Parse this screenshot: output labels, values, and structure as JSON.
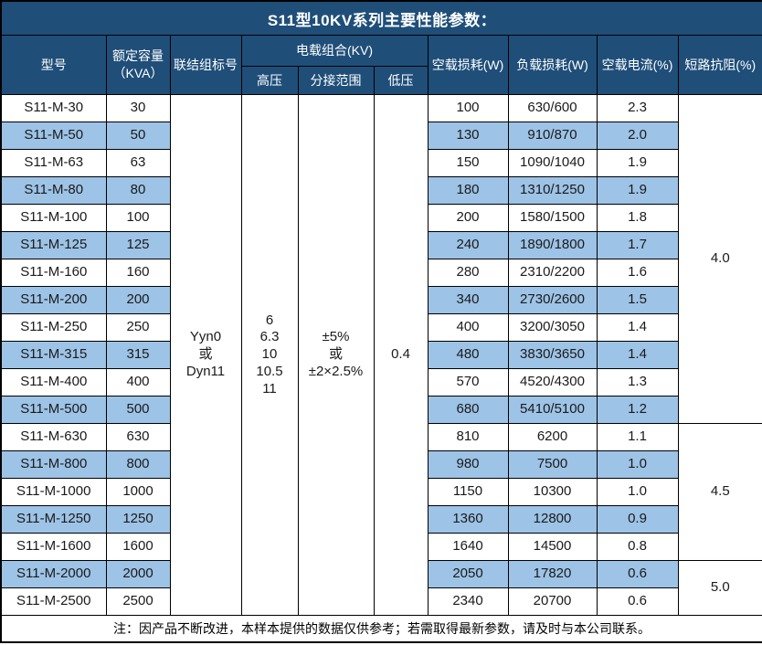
{
  "title": "S11型10KV系列主要性能参数：",
  "header": {
    "model": "型号",
    "capacity_line1": "额定容量",
    "capacity_line2": "（KVA）",
    "connection": "联结组标号",
    "voltage_group": "电载组合(KV)",
    "hv": "高压",
    "tap_range": "分接范围",
    "lv": "低压",
    "no_load_loss": "空载损耗(W)",
    "load_loss": "负载损耗(W)",
    "no_load_current": "空载电流(%)",
    "impedance": "短路抗阻(%)"
  },
  "merged": {
    "connection_lines": [
      "Yyn0",
      "或",
      "Dyn11"
    ],
    "hv_lines": [
      "6",
      "6.3",
      "10",
      "10.5",
      "11"
    ],
    "tap_lines": [
      "±5%",
      "或",
      "±2×2.5%"
    ],
    "lv": "0.4"
  },
  "impedance_groups": [
    {
      "value": "4.0",
      "rows": 12
    },
    {
      "value": "4.5",
      "rows": 5
    },
    {
      "value": "5.0",
      "rows": 2
    }
  ],
  "rows": [
    {
      "model": "S11-M-30",
      "capacity": "30",
      "no_load_loss": "100",
      "load_loss": "630/600",
      "no_load_current": "2.3"
    },
    {
      "model": "S11-M-50",
      "capacity": "50",
      "no_load_loss": "130",
      "load_loss": "910/870",
      "no_load_current": "2.0"
    },
    {
      "model": "S11-M-63",
      "capacity": "63",
      "no_load_loss": "150",
      "load_loss": "1090/1040",
      "no_load_current": "1.9"
    },
    {
      "model": "S11-M-80",
      "capacity": "80",
      "no_load_loss": "180",
      "load_loss": "1310/1250",
      "no_load_current": "1.9"
    },
    {
      "model": "S11-M-100",
      "capacity": "100",
      "no_load_loss": "200",
      "load_loss": "1580/1500",
      "no_load_current": "1.8"
    },
    {
      "model": "S11-M-125",
      "capacity": "125",
      "no_load_loss": "240",
      "load_loss": "1890/1800",
      "no_load_current": "1.7"
    },
    {
      "model": "S11-M-160",
      "capacity": "160",
      "no_load_loss": "280",
      "load_loss": "2310/2200",
      "no_load_current": "1.6"
    },
    {
      "model": "S11-M-200",
      "capacity": "200",
      "no_load_loss": "340",
      "load_loss": "2730/2600",
      "no_load_current": "1.5"
    },
    {
      "model": "S11-M-250",
      "capacity": "250",
      "no_load_loss": "400",
      "load_loss": "3200/3050",
      "no_load_current": "1.4"
    },
    {
      "model": "S11-M-315",
      "capacity": "315",
      "no_load_loss": "480",
      "load_loss": "3830/3650",
      "no_load_current": "1.4"
    },
    {
      "model": "S11-M-400",
      "capacity": "400",
      "no_load_loss": "570",
      "load_loss": "4520/4300",
      "no_load_current": "1.3"
    },
    {
      "model": "S11-M-500",
      "capacity": "500",
      "no_load_loss": "680",
      "load_loss": "5410/5100",
      "no_load_current": "1.2"
    },
    {
      "model": "S11-M-630",
      "capacity": "630",
      "no_load_loss": "810",
      "load_loss": "6200",
      "no_load_current": "1.1"
    },
    {
      "model": "S11-M-800",
      "capacity": "800",
      "no_load_loss": "980",
      "load_loss": "7500",
      "no_load_current": "1.0"
    },
    {
      "model": "S11-M-1000",
      "capacity": "1000",
      "no_load_loss": "1150",
      "load_loss": "10300",
      "no_load_current": "1.0"
    },
    {
      "model": "S11-M-1250",
      "capacity": "1250",
      "no_load_loss": "1360",
      "load_loss": "12800",
      "no_load_current": "0.9"
    },
    {
      "model": "S11-M-1600",
      "capacity": "1600",
      "no_load_loss": "1640",
      "load_loss": "14500",
      "no_load_current": "0.8"
    },
    {
      "model": "S11-M-2000",
      "capacity": "2000",
      "no_load_loss": "2050",
      "load_loss": "17820",
      "no_load_current": "0.6"
    },
    {
      "model": "S11-M-2500",
      "capacity": "2500",
      "no_load_loss": "2340",
      "load_loss": "20700",
      "no_load_current": "0.6"
    }
  ],
  "note": "注：因产品不断改进，本样本提供的数据仅供参考；若需取得最新参数，请及时与本公司联系。",
  "colors": {
    "header_bg": "#1F4E79",
    "header_text": "#FFFFFF",
    "stripe_bg": "#9DC3E6",
    "border": "#000000",
    "body_text": "#1A1A1A"
  }
}
